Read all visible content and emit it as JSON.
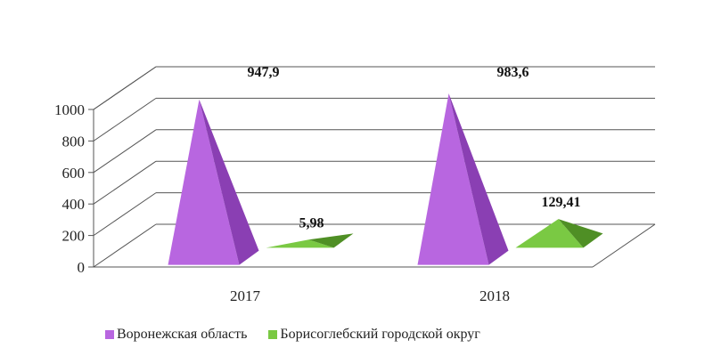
{
  "chart_data": {
    "type": "bar",
    "style": "3d-pyramid",
    "categories": [
      "2017",
      "2018"
    ],
    "series": [
      {
        "name": "Воронежская область",
        "values": [
          947.9,
          983.6
        ],
        "labels": [
          "947,9",
          "983,6"
        ],
        "color": "#b866e0",
        "side_color": "#8a3fb3"
      },
      {
        "name": "Борисоглебский городской округ",
        "values": [
          5.98,
          129.41
        ],
        "labels": [
          "5,98",
          "129,41"
        ],
        "color": "#7ac943",
        "side_color": "#4f8f25"
      }
    ],
    "ylim": [
      0,
      1000
    ],
    "yticks": [
      "0",
      "200",
      "400",
      "600",
      "800",
      "1000"
    ],
    "grid": true,
    "legend_position": "bottom"
  }
}
